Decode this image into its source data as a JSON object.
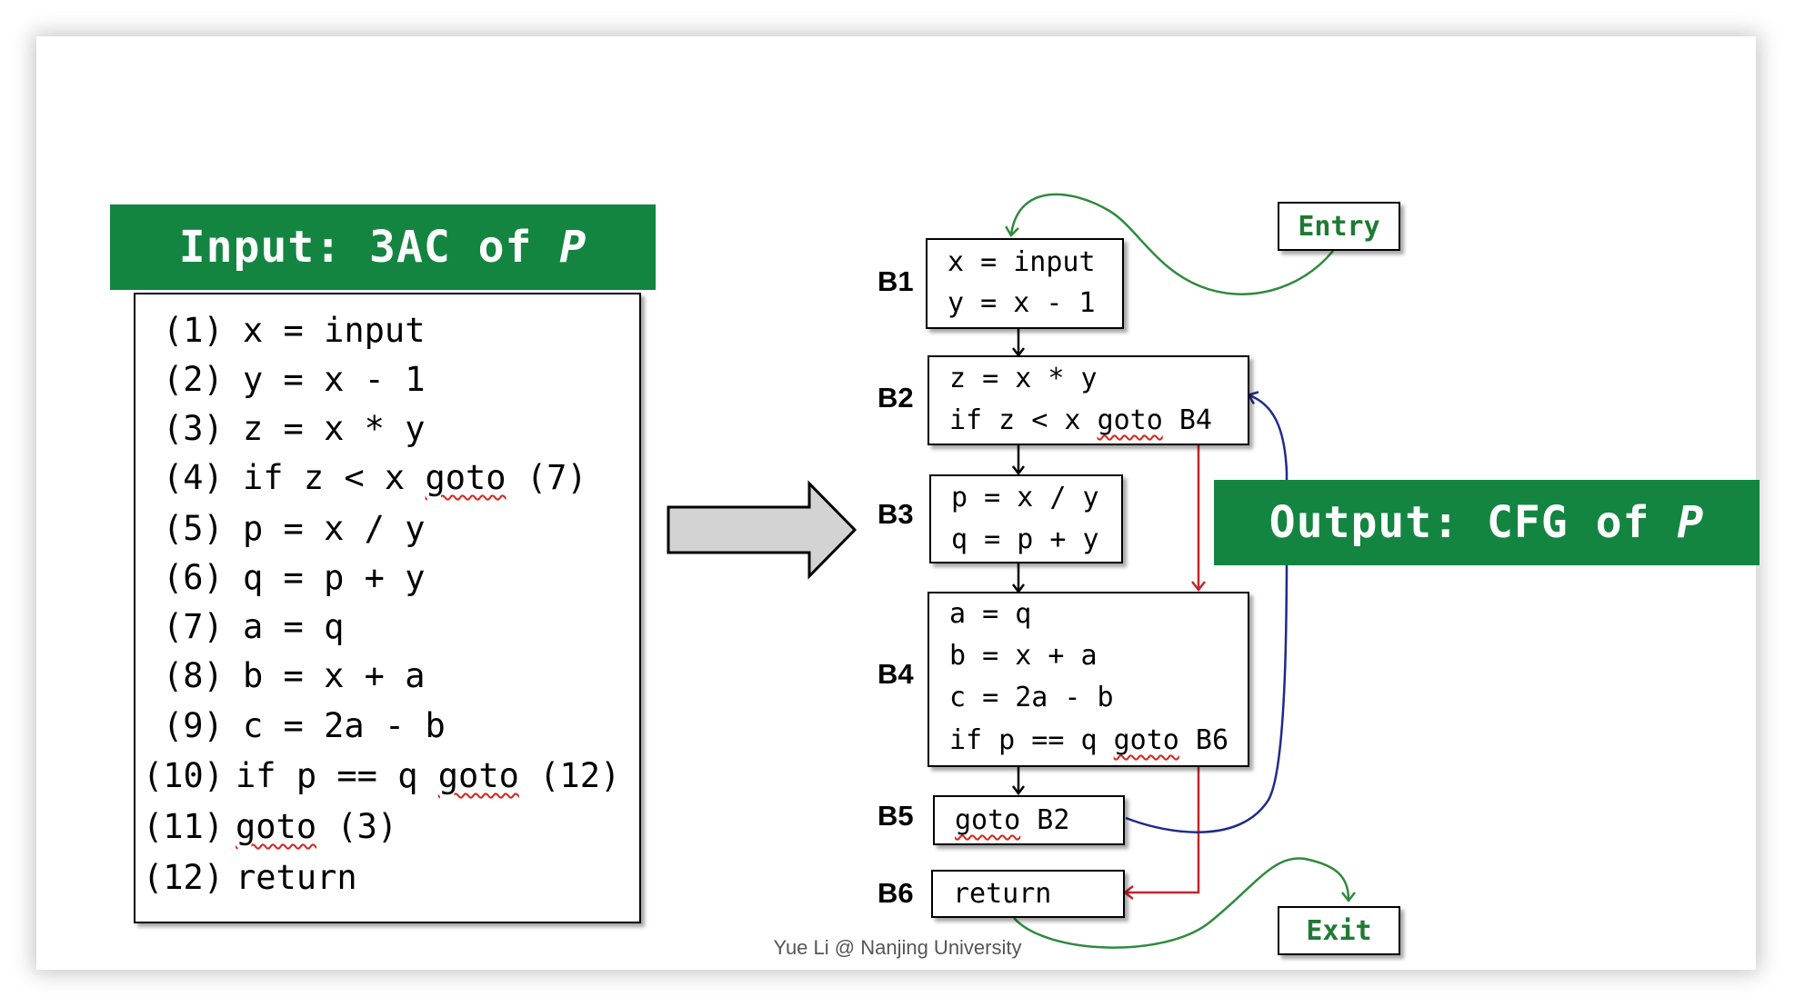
{
  "input_title": {
    "prefix": "Input: 3AC of ",
    "program": "P"
  },
  "output_title": {
    "prefix": "Output: CFG of ",
    "program": "P"
  },
  "code_lines": [
    {
      "num": "(1)",
      "pre": "x = input",
      "sq": "",
      "post": ""
    },
    {
      "num": "(2)",
      "pre": "y = x - 1",
      "sq": "",
      "post": ""
    },
    {
      "num": "(3)",
      "pre": "z = x * y",
      "sq": "",
      "post": ""
    },
    {
      "num": "(4)",
      "pre": "if z < x ",
      "sq": "goto",
      "post": " (7)"
    },
    {
      "num": "(5)",
      "pre": "p = x / y",
      "sq": "",
      "post": ""
    },
    {
      "num": "(6)",
      "pre": "q = p + y",
      "sq": "",
      "post": ""
    },
    {
      "num": "(7)",
      "pre": "a = q",
      "sq": "",
      "post": ""
    },
    {
      "num": "(8)",
      "pre": "b = x + a",
      "sq": "",
      "post": ""
    },
    {
      "num": "(9)",
      "pre": "c = 2a - b",
      "sq": "",
      "post": ""
    },
    {
      "num": "(10)",
      "pre": "if p == q ",
      "sq": "goto",
      "post": " (12)"
    },
    {
      "num": "(11)",
      "pre": "",
      "sq": "goto",
      "post": " (3)"
    },
    {
      "num": "(12)",
      "pre": "return",
      "sq": "",
      "post": ""
    }
  ],
  "blocks": [
    {
      "label": "B1",
      "lines": [
        {
          "pre": "x = input",
          "sq": "",
          "post": ""
        },
        {
          "pre": "y = x - 1",
          "sq": "",
          "post": ""
        }
      ]
    },
    {
      "label": "B2",
      "lines": [
        {
          "pre": "z = x * y",
          "sq": "",
          "post": ""
        },
        {
          "pre": "if z < x ",
          "sq": "goto",
          "post": " B4"
        }
      ]
    },
    {
      "label": "B3",
      "lines": [
        {
          "pre": "p = x / y",
          "sq": "",
          "post": ""
        },
        {
          "pre": "q = p + y",
          "sq": "",
          "post": ""
        }
      ]
    },
    {
      "label": "B4",
      "lines": [
        {
          "pre": "a = q",
          "sq": "",
          "post": ""
        },
        {
          "pre": "b = x + a",
          "sq": "",
          "post": ""
        },
        {
          "pre": "c = 2a - b",
          "sq": "",
          "post": ""
        },
        {
          "pre": "if p == q ",
          "sq": "goto",
          "post": " B6"
        }
      ]
    },
    {
      "label": "B5",
      "lines": [
        {
          "pre": "",
          "sq": "goto",
          "post": " B2"
        }
      ]
    },
    {
      "label": "B6",
      "lines": [
        {
          "pre": "return",
          "sq": "",
          "post": ""
        }
      ]
    }
  ],
  "entry_label": "Entry",
  "exit_label": "Exit",
  "footer": "Yue Li @ Nanjing University",
  "colors": {
    "banner": "#138541",
    "terminal_text": "#1f7a33",
    "entry_exit_edge": "#2f8a3d",
    "jump_edge": "#c0272d",
    "back_edge": "#1f2a8c",
    "squiggle": "#d8231b"
  }
}
